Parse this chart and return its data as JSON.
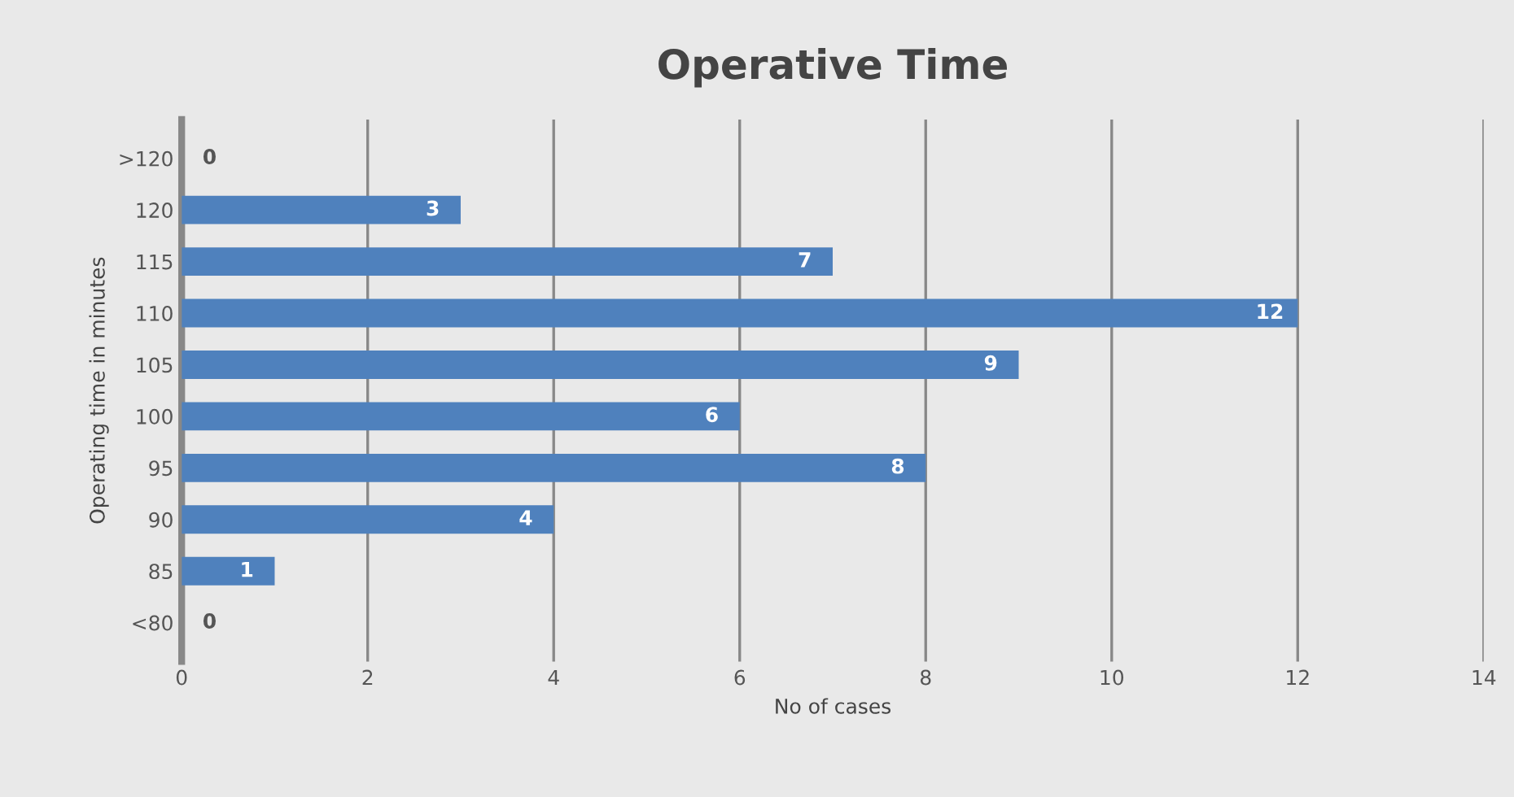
{
  "chart_data": {
    "type": "bar",
    "orientation": "horizontal",
    "title": "Operative Time",
    "xlabel": "No of cases",
    "ylabel": "Operating time in minutes",
    "categories": [
      ">120",
      "120",
      "115",
      "110",
      "105",
      "100",
      "95",
      "90",
      "85",
      "<80"
    ],
    "values": [
      0,
      3,
      7,
      12,
      9,
      6,
      8,
      4,
      1,
      0
    ],
    "color": "#4f81bd",
    "xlim": [
      0,
      14
    ],
    "xticks": [
      0,
      2,
      4,
      6,
      8,
      10,
      12,
      14
    ],
    "grid": "x",
    "data_labels": true
  }
}
